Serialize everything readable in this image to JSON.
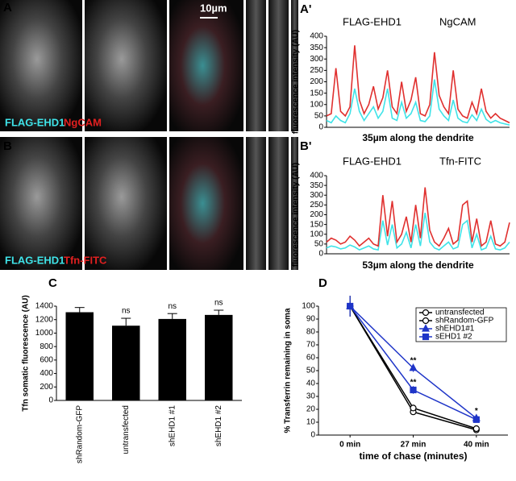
{
  "micrographs": {
    "A": {
      "letter": "A",
      "labels": [
        "FLAG-EHD1",
        "NgCAM"
      ],
      "scale_bar": "10µm"
    },
    "B": {
      "letter": "B",
      "labels": [
        "FLAG-EHD1",
        "Tfn-FITC"
      ]
    }
  },
  "chart_data": [
    {
      "type": "line",
      "letter": "A'",
      "xlabel": "35µm along the dendrite",
      "ylabel": "fluorescence intensity (AU)",
      "legend": "top",
      "ylim": [
        0,
        400
      ],
      "yticks": [
        0,
        50,
        100,
        150,
        200,
        250,
        300,
        350,
        400
      ],
      "series": [
        {
          "name": "FLAG-EHD1",
          "color": "#3fe3e8",
          "values": [
            30,
            20,
            50,
            30,
            20,
            60,
            170,
            70,
            30,
            60,
            90,
            40,
            70,
            170,
            40,
            30,
            110,
            40,
            60,
            110,
            30,
            25,
            50,
            210,
            80,
            50,
            30,
            120,
            40,
            25,
            20,
            55,
            30,
            80,
            35,
            20,
            30,
            20,
            15,
            10
          ]
        },
        {
          "name": "NgCAM",
          "color": "#e0302f",
          "values": [
            50,
            60,
            260,
            70,
            50,
            90,
            360,
            120,
            60,
            100,
            180,
            80,
            130,
            250,
            90,
            60,
            200,
            70,
            120,
            220,
            60,
            50,
            100,
            330,
            140,
            90,
            60,
            250,
            80,
            50,
            40,
            110,
            60,
            170,
            70,
            40,
            60,
            40,
            30,
            20
          ]
        }
      ]
    },
    {
      "type": "line",
      "letter": "B'",
      "xlabel": "53µm along the dendrite",
      "ylabel": "fluorescence intensity (AU)",
      "legend": "top",
      "ylim": [
        0,
        400
      ],
      "yticks": [
        0,
        50,
        100,
        150,
        200,
        250,
        300,
        350,
        400
      ],
      "series": [
        {
          "name": "FLAG-EHD1",
          "color": "#3fe3e8",
          "values": [
            30,
            40,
            35,
            25,
            30,
            45,
            35,
            20,
            30,
            40,
            25,
            20,
            170,
            45,
            150,
            30,
            50,
            110,
            30,
            150,
            40,
            210,
            60,
            30,
            20,
            40,
            60,
            25,
            35,
            150,
            170,
            30,
            100,
            20,
            30,
            90,
            25,
            20,
            30,
            60
          ]
        },
        {
          "name": "Tfn-FITC",
          "color": "#e0302f",
          "values": [
            60,
            80,
            70,
            50,
            60,
            90,
            70,
            40,
            60,
            80,
            50,
            40,
            300,
            90,
            270,
            60,
            100,
            190,
            60,
            250,
            80,
            340,
            120,
            60,
            40,
            80,
            130,
            50,
            70,
            250,
            270,
            60,
            180,
            40,
            60,
            170,
            50,
            40,
            60,
            160
          ]
        }
      ]
    },
    {
      "type": "bar",
      "letter": "C",
      "ylabel": "Tfn somatic fluorescence (AU)",
      "categories": [
        "shRandom-GFP",
        "untransfected",
        "shEHD1 #1",
        "shEHD1 #2"
      ],
      "values": [
        1310,
        1110,
        1210,
        1270
      ],
      "errors": [
        70,
        110,
        80,
        70
      ],
      "color": "#000000",
      "significance": [
        null,
        "ns",
        "ns",
        "ns"
      ],
      "ylim": [
        0,
        1400
      ],
      "yticks": [
        0,
        200,
        400,
        600,
        800,
        1000,
        1200,
        1400
      ]
    },
    {
      "type": "line",
      "letter": "D",
      "xlabel": "time of chase (minutes)",
      "ylabel": "% Transferrin remaining in soma",
      "legend": "upper right",
      "categories": [
        "0 min",
        "27 min",
        "40 min"
      ],
      "ylim": [
        0,
        100
      ],
      "yticks": [
        0,
        10,
        20,
        30,
        40,
        50,
        60,
        70,
        80,
        90,
        100
      ],
      "series": [
        {
          "name": "untransfected",
          "color": "#000000",
          "marker": "circle",
          "values": [
            100,
            18,
            4
          ],
          "errors": [
            8,
            2,
            1
          ]
        },
        {
          "name": "shRandom-GFP",
          "color": "#000000",
          "marker": "circle",
          "values": [
            100,
            21,
            5
          ],
          "errors": [
            8,
            2,
            1
          ]
        },
        {
          "name": "shEHD1#1",
          "color": "#1f35c8",
          "marker": "triangle",
          "values": [
            100,
            52,
            13
          ],
          "errors": [
            8,
            3,
            2
          ],
          "significance": [
            null,
            "**",
            "*"
          ]
        },
        {
          "name": "sEHD1 #2",
          "color": "#1f35c8",
          "marker": "square",
          "values": [
            100,
            35,
            12
          ],
          "errors": [
            8,
            3,
            2
          ],
          "significance": [
            null,
            "**",
            null
          ]
        }
      ]
    }
  ]
}
